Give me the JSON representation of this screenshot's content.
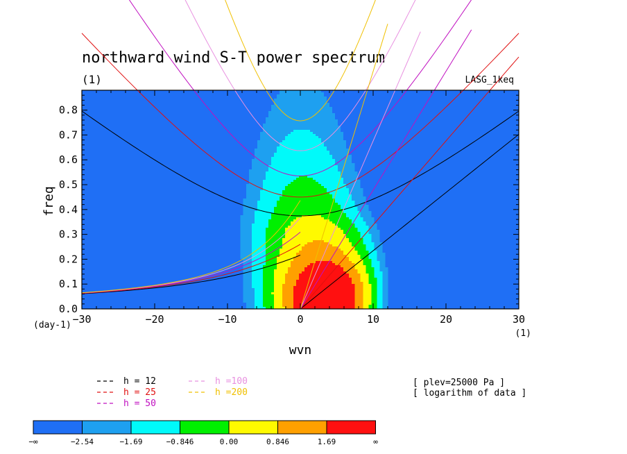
{
  "chart_data": {
    "type": "heatmap",
    "title": "northward wind S-T power spectrum",
    "units_left": "(1)",
    "model_label": "LASG_1keq",
    "ylabel": "freq",
    "xlabel": "wvn",
    "x_unit": "(1)",
    "y_unit": "(day-1)",
    "xlim": [
      -30,
      30
    ],
    "ylim": [
      0,
      0.88
    ],
    "x_ticks": [
      -30,
      -20,
      -10,
      0,
      10,
      20,
      30
    ],
    "x_tick_labels": [
      "−30",
      "−20",
      "−10",
      "0",
      "10",
      "20",
      "30"
    ],
    "y_ticks": [
      0,
      0.1,
      0.2,
      0.3,
      0.4,
      0.5,
      0.6,
      0.7,
      0.8
    ],
    "y_tick_labels": [
      "0.0",
      "0.1",
      "0.2",
      "0.3",
      "0.4",
      "0.5",
      "0.6",
      "0.7",
      "0.8"
    ],
    "contour_levels": [
      -2.54,
      -1.69,
      -0.846,
      0.0,
      0.846,
      1.69
    ],
    "level_colors": [
      "#1f6ff5",
      "#1ea0f0",
      "#00fafa",
      "#00f000",
      "#fffa00",
      "#ffa000",
      "#ff1010"
    ],
    "colorbar_labels": [
      "−∞",
      "−2.54",
      "−1.69",
      "−0.846",
      "0.00",
      "0.846",
      "1.69",
      "∞"
    ],
    "dispersion_curves": [
      {
        "name": "h = 12",
        "color": "#000000",
        "equivalent_depth": 12
      },
      {
        "name": "h = 25",
        "color": "#e01010",
        "equivalent_depth": 25
      },
      {
        "name": "h = 50",
        "color": "#c010c0",
        "equivalent_depth": 50
      },
      {
        "name": "h =100",
        "color": "#e890e0",
        "equivalent_depth": 100
      },
      {
        "name": "h =200",
        "color": "#f0c000",
        "equivalent_depth": 200
      }
    ],
    "notes": [
      "[ plev=25000 Pa ]",
      "[ logarithm of data ]"
    ]
  }
}
